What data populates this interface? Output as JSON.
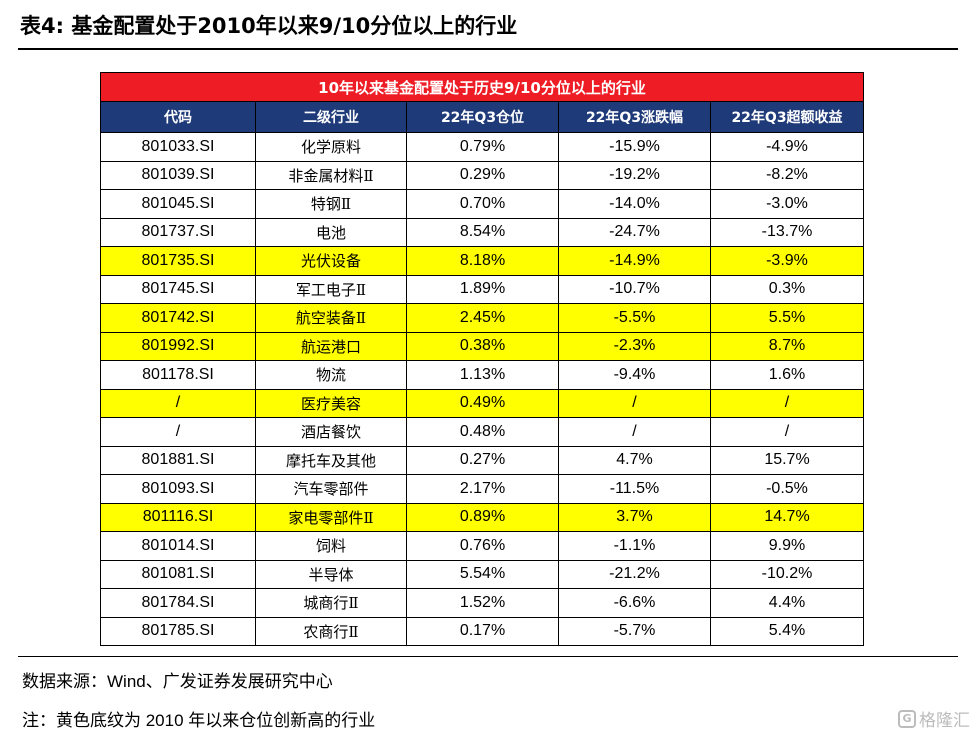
{
  "doc_title": "表4: 基金配置处于2010年以来9/10分位以上的行业",
  "table": {
    "banner": "10年以来基金配置处于历史9/10分位以上的行业",
    "headers": [
      "代码",
      "二级行业",
      "22年Q3仓位",
      "22年Q3涨跌幅",
      "22年Q3超额收益"
    ],
    "highlight_color": "#ffff00",
    "rows": [
      {
        "code": "801033.SI",
        "industry": "化学原料",
        "position": "0.79%",
        "change": "-15.9%",
        "excess": "-4.9%",
        "highlighted": false
      },
      {
        "code": "801039.SI",
        "industry": "非金属材料Ⅱ",
        "position": "0.29%",
        "change": "-19.2%",
        "excess": "-8.2%",
        "highlighted": false
      },
      {
        "code": "801045.SI",
        "industry": "特钢Ⅱ",
        "position": "0.70%",
        "change": "-14.0%",
        "excess": "-3.0%",
        "highlighted": false
      },
      {
        "code": "801737.SI",
        "industry": "电池",
        "position": "8.54%",
        "change": "-24.7%",
        "excess": "-13.7%",
        "highlighted": false
      },
      {
        "code": "801735.SI",
        "industry": "光伏设备",
        "position": "8.18%",
        "change": "-14.9%",
        "excess": "-3.9%",
        "highlighted": true
      },
      {
        "code": "801745.SI",
        "industry": "军工电子Ⅱ",
        "position": "1.89%",
        "change": "-10.7%",
        "excess": "0.3%",
        "highlighted": false
      },
      {
        "code": "801742.SI",
        "industry": "航空装备Ⅱ",
        "position": "2.45%",
        "change": "-5.5%",
        "excess": "5.5%",
        "highlighted": true
      },
      {
        "code": "801992.SI",
        "industry": "航运港口",
        "position": "0.38%",
        "change": "-2.3%",
        "excess": "8.7%",
        "highlighted": true
      },
      {
        "code": "801178.SI",
        "industry": "物流",
        "position": "1.13%",
        "change": "-9.4%",
        "excess": "1.6%",
        "highlighted": false
      },
      {
        "code": "/",
        "industry": "医疗美容",
        "position": "0.49%",
        "change": "/",
        "excess": "/",
        "highlighted": true
      },
      {
        "code": "/",
        "industry": "酒店餐饮",
        "position": "0.48%",
        "change": "/",
        "excess": "/",
        "highlighted": false
      },
      {
        "code": "801881.SI",
        "industry": "摩托车及其他",
        "position": "0.27%",
        "change": "4.7%",
        "excess": "15.7%",
        "highlighted": false
      },
      {
        "code": "801093.SI",
        "industry": "汽车零部件",
        "position": "2.17%",
        "change": "-11.5%",
        "excess": "-0.5%",
        "highlighted": false
      },
      {
        "code": "801116.SI",
        "industry": "家电零部件Ⅱ",
        "position": "0.89%",
        "change": "3.7%",
        "excess": "14.7%",
        "highlighted": true
      },
      {
        "code": "801014.SI",
        "industry": "饲料",
        "position": "0.76%",
        "change": "-1.1%",
        "excess": "9.9%",
        "highlighted": false
      },
      {
        "code": "801081.SI",
        "industry": "半导体",
        "position": "5.54%",
        "change": "-21.2%",
        "excess": "-10.2%",
        "highlighted": false
      },
      {
        "code": "801784.SI",
        "industry": "城商行Ⅱ",
        "position": "1.52%",
        "change": "-6.6%",
        "excess": "4.4%",
        "highlighted": false
      },
      {
        "code": "801785.SI",
        "industry": "农商行Ⅱ",
        "position": "0.17%",
        "change": "-5.7%",
        "excess": "5.4%",
        "highlighted": false
      }
    ]
  },
  "footer": {
    "source": "数据来源：Wind、广发证券发展研究中心",
    "note": "注：黄色底纹为 2010 年以来仓位创新高的行业"
  },
  "watermark": {
    "icon": "gelonghui-logo-icon",
    "text": "格隆汇",
    "logo_letter": "G"
  }
}
